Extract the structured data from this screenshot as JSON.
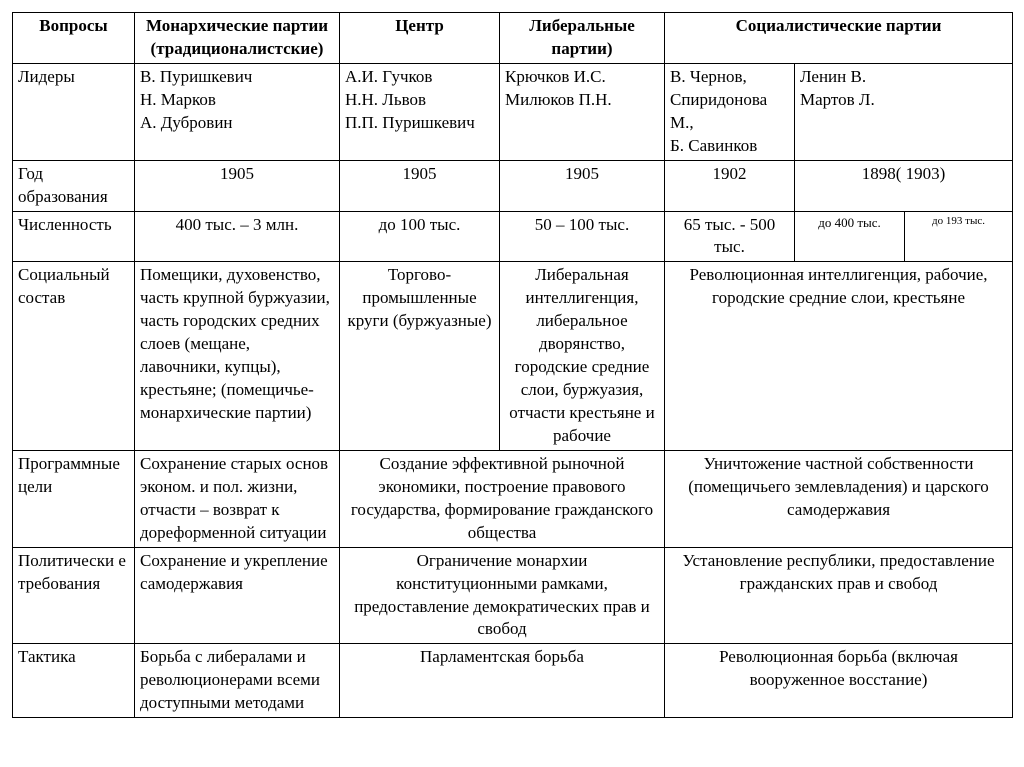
{
  "table": {
    "background_color": "#ffffff",
    "border_color": "#000000",
    "font_family": "Times New Roman",
    "base_fontsize": 17,
    "headers": {
      "questions": "Вопросы",
      "monarchic": "Монархические партии (традиционалистские)",
      "center": "Центр",
      "liberal": "Либеральные партии)",
      "socialist": "Социалистические  партии"
    },
    "rows": {
      "leaders": {
        "label": "Лидеры",
        "monarchic": "В. Пуришкевич\nН. Марков\nА. Дубровин",
        "center": "А.И. Гучков\nН.Н. Львов\nП.П. Пуришкевич",
        "liberal": "Крючков И.С.\nМилюков П.Н.",
        "socialist_a": "В. Чернов, Спиридонова М.,\nБ. Савинков",
        "socialist_b": "Ленин   В.\nМартов Л."
      },
      "year": {
        "label": "Год образования",
        "monarchic": "1905",
        "center": "1905",
        "liberal": "1905",
        "socialist_a": "1902",
        "socialist_b": "1898( 1903)"
      },
      "size": {
        "label": "Численность",
        "monarchic": "400 тыс. – 3 млн.",
        "center": "до 100 тыс.",
        "liberal": "50 – 100 тыс.",
        "socialist_a": "65 тыс. - 500 тыс.",
        "socialist_b": "до 400 тыс.",
        "socialist_c": "до 193 тыс."
      },
      "social": {
        "label": "Социальный состав",
        "monarchic": "Помещики, духовенство, часть крупной буржуазии, часть городских средних слоев (мещане, лавочники, купцы), крестьяне; (помещичье-монархические партии)",
        "center": "Торгово-промышленные круги (буржуазные)",
        "liberal": "Либеральная интеллигенция, либеральное дворянство, городские средние слои, буржуазия, отчасти крестьяне и рабочие",
        "socialist": "Революционная интеллигенция, рабочие, городские средние слои, крестьяне"
      },
      "program": {
        "label": "Программные цели",
        "monarchic": "Сохранение старых основ эконом. и пол. жизни, отчасти – возврат к дореформенной ситуации",
        "center_liberal": "Создание эффективной рыночной экономики, построение правового государства, формирование гражданского общества",
        "socialist": "Уничтожение частной собственности (помещичьего землевладения) и царского самодержавия"
      },
      "politics": {
        "label": "Политически е требования",
        "monarchic": "Сохранение и укрепление самодержавия",
        "center_liberal": "Ограничение монархии конституционными рамками, предоставление демократических прав и свобод",
        "socialist": "Установление республики, предоставление гражданских прав и свобод"
      },
      "tactics": {
        "label": "Тактика",
        "monarchic": "Борьба с либералами и революционерами всеми доступными методами",
        "center_liberal": "Парламентская борьба",
        "socialist": "Революционная борьба (включая вооруженное восстание)"
      }
    }
  }
}
